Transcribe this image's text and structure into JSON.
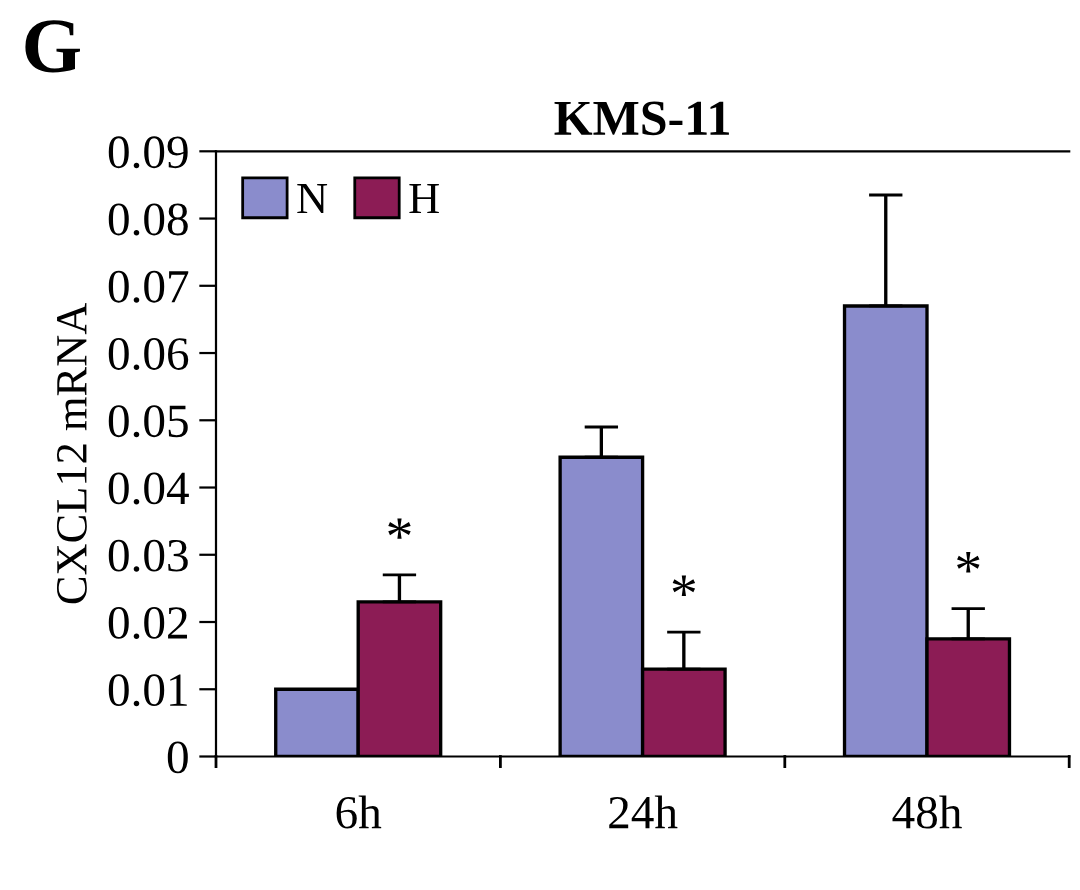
{
  "chart_data": {
    "type": "bar",
    "title": "KMS-11",
    "ylabel": "CXCL12 mRNA",
    "categories": [
      "6h",
      "24h",
      "48h"
    ],
    "series": [
      {
        "name": "N",
        "color": "#8a8ccc",
        "values": [
          0.01,
          0.0445,
          0.067
        ],
        "errors": [
          null,
          [
            0.0445,
            0.049
          ],
          [
            0.067,
            0.0835
          ]
        ]
      },
      {
        "name": "H",
        "color": "#8c1c55",
        "values": [
          0.023,
          0.013,
          0.0175
        ],
        "errors": [
          [
            0.023,
            0.027
          ],
          [
            0.013,
            0.0185
          ],
          [
            0.0175,
            0.022
          ]
        ]
      }
    ],
    "ylim": [
      0,
      0.09
    ],
    "yticks": [
      0,
      0.01,
      0.02,
      0.03,
      0.04,
      0.05,
      0.06,
      0.07,
      0.08,
      0.09
    ],
    "legend": "top left",
    "grid": false,
    "annotations": [
      "G",
      "*",
      "*",
      "*"
    ]
  }
}
